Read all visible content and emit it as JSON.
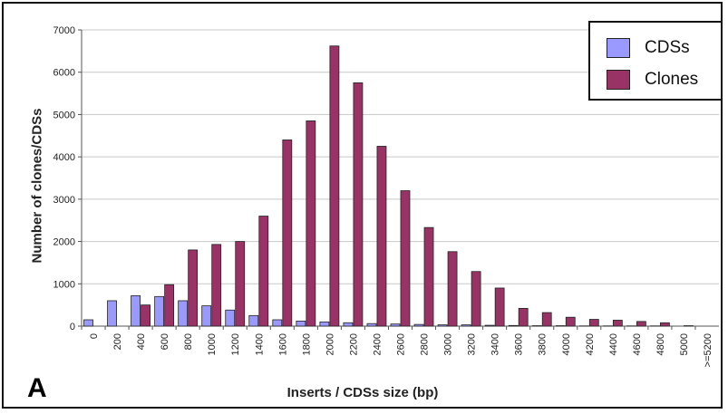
{
  "panel_label": "A",
  "legend": {
    "items": [
      {
        "label": "CDSs",
        "color": "#9999ff"
      },
      {
        "label": "Clones",
        "color": "#993366"
      }
    ]
  },
  "chart_data": {
    "type": "bar",
    "title": "",
    "xlabel": "Inserts / CDSs size (bp)",
    "ylabel": "Number of clones/CDSs",
    "ylim": [
      0,
      7000
    ],
    "yticks": [
      0,
      1000,
      2000,
      3000,
      4000,
      5000,
      6000,
      7000
    ],
    "grid": true,
    "legend_position": "top-right",
    "categories": [
      "0",
      "200",
      "400",
      "600",
      "800",
      "1000",
      "1200",
      "1400",
      "1600",
      "1800",
      "2000",
      "2200",
      "2400",
      "2600",
      "2800",
      "3000",
      "3200",
      "3400",
      "3600",
      "3800",
      "4000",
      "4200",
      "4400",
      "4600",
      "4800",
      "5000",
      ">=5200"
    ],
    "series": [
      {
        "name": "CDSs",
        "color": "#9999ff",
        "values": [
          150,
          600,
          720,
          700,
          600,
          480,
          380,
          250,
          150,
          120,
          100,
          80,
          60,
          50,
          40,
          30,
          30,
          20,
          15,
          10,
          10,
          5,
          5,
          5,
          5,
          0,
          0
        ]
      },
      {
        "name": "Clones",
        "color": "#993366",
        "values": [
          0,
          0,
          500,
          980,
          1800,
          1930,
          2000,
          2600,
          4400,
          4850,
          6620,
          5750,
          4250,
          3200,
          2330,
          1760,
          1290,
          900,
          420,
          320,
          210,
          160,
          140,
          110,
          80,
          10,
          0
        ]
      }
    ]
  }
}
